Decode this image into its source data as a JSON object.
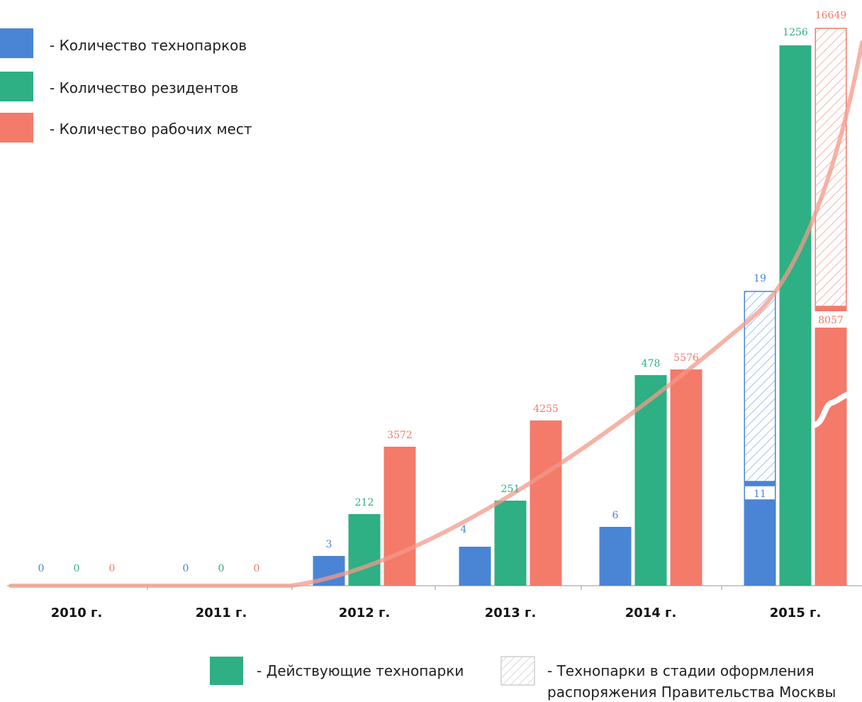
{
  "chart_data": {
    "type": "bar",
    "categories": [
      "2010 г.",
      "2011 г.",
      "2012 г.",
      "2013 г.",
      "2014 г.",
      "2015 г."
    ],
    "series": [
      {
        "name": "- Количество технопарков",
        "values": [
          0,
          0,
          3,
          4,
          6,
          11
        ],
        "value_labels": [
          "0",
          "0",
          "3",
          "4",
          "6",
          "11"
        ],
        "color": "#4A84D4"
      },
      {
        "name": "- Количество резидентов",
        "values": [
          0,
          0,
          212,
          251,
          478,
          1256
        ],
        "value_labels": [
          "0",
          "0",
          "212",
          "251",
          "478",
          "1256"
        ],
        "color": "#2EAF84"
      },
      {
        "name": "- Количество рабочих мест",
        "values": [
          0,
          0,
          3572,
          4255,
          5576,
          8057
        ],
        "value_labels": [
          "0",
          "0",
          "3572",
          "4255",
          "5576",
          "8057"
        ],
        "color": "#F47A6A"
      }
    ],
    "planned_2015": {
      "technoparks": {
        "value": 19,
        "label": "19"
      },
      "jobs": {
        "value": 16649,
        "label": "16649"
      }
    },
    "bottom_legend": {
      "active": "- Действующие технопарки",
      "planned_line1": "- Технопарки в стадии оформления",
      "planned_line2": "распоряжения Правительства Москвы"
    },
    "trend_line": true,
    "grid": false,
    "legend_position": "top-left"
  }
}
